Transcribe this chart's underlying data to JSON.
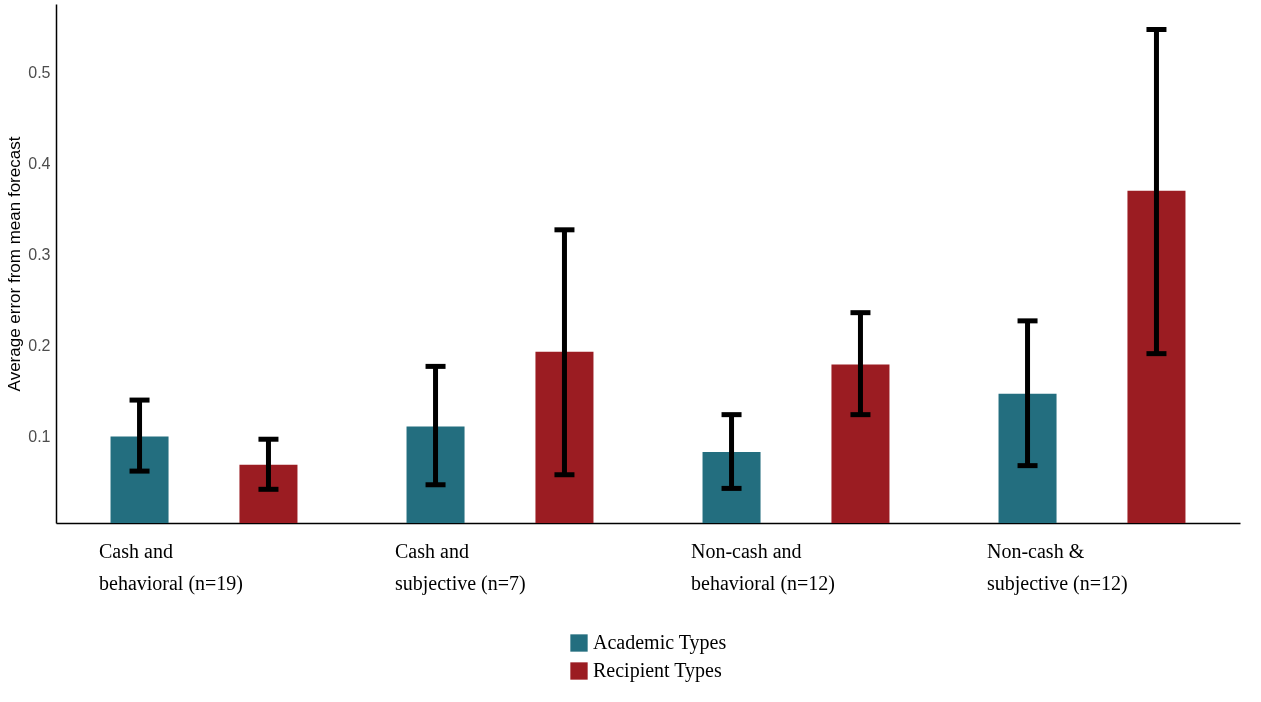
{
  "chart_data": {
    "type": "bar",
    "ylabel": "Average error from mean forecast",
    "categories": [
      "Cash and\nbehavioral (n=19)",
      "Cash and\nsubjective (n=7)",
      "Non-cash and\nbehavioral (n=12)",
      "Non-cash &\nsubjective (n=12)"
    ],
    "series": [
      {
        "name": "Academic Types",
        "color": "#236e7f",
        "values": [
          0.1,
          0.111,
          0.083,
          0.147
        ],
        "errors": [
          [
            0.062,
            0.14
          ],
          [
            0.047,
            0.177
          ],
          [
            0.043,
            0.124
          ],
          [
            0.068,
            0.227
          ]
        ]
      },
      {
        "name": "Recipient Types",
        "color": "#9b1c22",
        "values": [
          0.069,
          0.193,
          0.179,
          0.37
        ],
        "errors": [
          [
            0.042,
            0.097
          ],
          [
            0.058,
            0.327
          ],
          [
            0.124,
            0.236
          ],
          [
            0.191,
            0.547
          ]
        ]
      }
    ],
    "ylim": [
      0.005,
      0.575
    ],
    "yticks": [
      {
        "value": 0.1,
        "label": "0.1"
      },
      {
        "value": 0.2,
        "label": "0.2"
      },
      {
        "value": 0.3,
        "label": "0.3"
      },
      {
        "value": 0.4,
        "label": "0.4"
      },
      {
        "value": 0.5,
        "label": "0.5"
      }
    ],
    "grid": false,
    "legend": "bottom"
  }
}
